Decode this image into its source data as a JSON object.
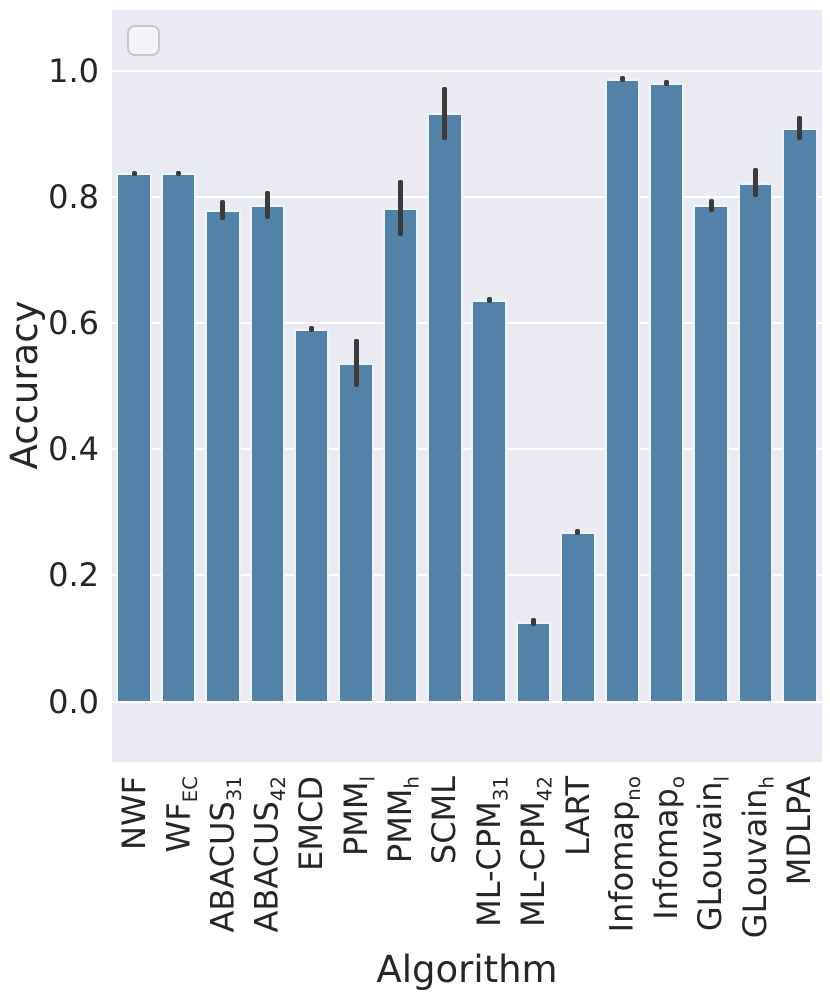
{
  "chart_data": {
    "type": "bar",
    "title": "",
    "xlabel": "Algorithm",
    "ylabel": "Accuracy",
    "plot_background": "#eaeaf2",
    "grid_color": "#ffffff",
    "grid": true,
    "bar_color": "#5282a8",
    "error_bar_color": "#3b3b3b",
    "text_color": "#262626",
    "ylim": [
      -0.097,
      1.097
    ],
    "yticks": [
      0.0,
      0.2,
      0.4,
      0.6,
      0.8,
      1.0
    ],
    "ytick_labels": [
      "0.0",
      "0.2",
      "0.4",
      "0.6",
      "0.8",
      "1.0"
    ],
    "legend": {
      "visible": true,
      "entries": []
    },
    "categories": [
      {
        "label": "NWF",
        "sub": ""
      },
      {
        "label": "WF",
        "sub": "EC"
      },
      {
        "label": "ABACUS",
        "sub": "31"
      },
      {
        "label": "ABACUS",
        "sub": "42"
      },
      {
        "label": "EMCD",
        "sub": ""
      },
      {
        "label": "PMM",
        "sub": "l"
      },
      {
        "label": "PMM",
        "sub": "h"
      },
      {
        "label": "SCML",
        "sub": ""
      },
      {
        "label": "ML-CPM",
        "sub": "31"
      },
      {
        "label": "ML-CPM",
        "sub": "42"
      },
      {
        "label": "LART",
        "sub": ""
      },
      {
        "label": "Infomap",
        "sub": "no"
      },
      {
        "label": "Infomap",
        "sub": "o"
      },
      {
        "label": "GLouvain",
        "sub": "l"
      },
      {
        "label": "GLouvain",
        "sub": "h"
      },
      {
        "label": "MDLPA",
        "sub": ""
      }
    ],
    "values": [
      0.838,
      0.838,
      0.78,
      0.787,
      0.591,
      0.537,
      0.783,
      0.933,
      0.637,
      0.126,
      0.269,
      0.987,
      0.981,
      0.787,
      0.823,
      0.91
    ],
    "errors": [
      0.004,
      0.004,
      0.016,
      0.022,
      0.005,
      0.038,
      0.044,
      0.042,
      0.005,
      0.006,
      0.005,
      0.005,
      0.005,
      0.01,
      0.023,
      0.019
    ]
  }
}
